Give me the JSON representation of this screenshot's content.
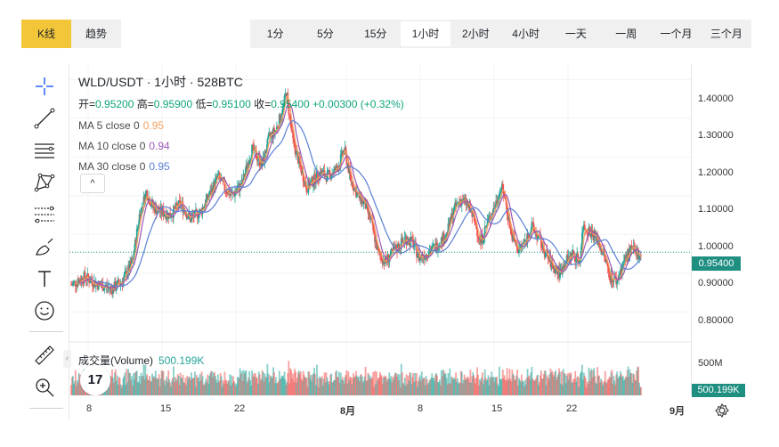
{
  "view_tabs": [
    {
      "label": "K线",
      "active": true
    },
    {
      "label": "趋势",
      "active": false
    }
  ],
  "intervals": [
    {
      "label": "1分",
      "active": false
    },
    {
      "label": "5分",
      "active": false
    },
    {
      "label": "15分",
      "active": false
    },
    {
      "label": "1小时",
      "active": true
    },
    {
      "label": "2小时",
      "active": false
    },
    {
      "label": "4小时",
      "active": false
    },
    {
      "label": "一天",
      "active": false
    },
    {
      "label": "一周",
      "active": false
    },
    {
      "label": "一个月",
      "active": false
    },
    {
      "label": "三个月",
      "active": false
    }
  ],
  "tools": [
    "crosshair-icon",
    "trend-line-icon",
    "horizontal-lines-icon",
    "pattern-icon",
    "fib-retracement-icon",
    "brush-icon",
    "text-icon",
    "emoji-icon",
    "ruler-icon",
    "zoom-in-icon"
  ],
  "legend": {
    "title": "WLD/USDT · 1小时 · 528BTC",
    "open_label": "开=",
    "open": "0.95200",
    "high_label": "高=",
    "high": "0.95900",
    "low_label": "低=",
    "low": "0.95100",
    "close_label": "收=",
    "close": "0.95400",
    "change": "+0.00300 (+0.32%)",
    "ma": [
      {
        "label": "MA 5 close 0",
        "value": "0.95",
        "color": "#f4a261"
      },
      {
        "label": "MA 10 close 0",
        "value": "0.94",
        "color": "#9b59b6"
      },
      {
        "label": "MA 30 close 0",
        "value": "0.95",
        "color": "#5b7fd6"
      }
    ],
    "toggle": "^"
  },
  "volume_legend": {
    "label": "成交量(Volume)",
    "value": "500.199K"
  },
  "price_axis": [
    "1.40000",
    "1.30000",
    "1.20000",
    "1.10000",
    "1.00000",
    "0.90000",
    "0.80000"
  ],
  "volume_axis": [
    "500M"
  ],
  "last_price": "0.95400",
  "last_volume": "500.199K",
  "time_axis": [
    "8",
    "15",
    "22",
    "8月",
    "8",
    "15",
    "22",
    "9月"
  ],
  "colors": {
    "up": "#26a69a",
    "down": "#ef5350",
    "accent": "#f3c63a",
    "ma5": "#f4a261",
    "ma10": "#9b59b6",
    "ma30": "#5b7fd6"
  },
  "logo_text": "17",
  "chart_data": {
    "type": "candlestick",
    "title": "WLD/USDT · 1小时 · 528BTC",
    "ylim": [
      0.75,
      1.44
    ],
    "x_ticks": [
      "8",
      "15",
      "22",
      "8月",
      "8",
      "15",
      "22",
      "9月"
    ],
    "trend_close": [
      [
        0,
        0.87
      ],
      [
        4,
        0.89
      ],
      [
        8,
        0.87
      ],
      [
        12,
        0.86
      ],
      [
        15,
        0.88
      ],
      [
        18,
        0.93
      ],
      [
        20,
        1.05
      ],
      [
        22,
        1.11
      ],
      [
        24,
        1.07
      ],
      [
        26,
        1.06
      ],
      [
        29,
        1.05
      ],
      [
        32,
        1.08
      ],
      [
        35,
        1.04
      ],
      [
        38,
        1.06
      ],
      [
        41,
        1.11
      ],
      [
        43,
        1.15
      ],
      [
        45,
        1.12
      ],
      [
        47,
        1.1
      ],
      [
        50,
        1.13
      ],
      [
        53,
        1.22
      ],
      [
        56,
        1.18
      ],
      [
        58,
        1.25
      ],
      [
        60,
        1.27
      ],
      [
        62,
        1.32
      ],
      [
        63,
        1.37
      ],
      [
        65,
        1.24
      ],
      [
        67,
        1.18
      ],
      [
        69,
        1.12
      ],
      [
        71,
        1.14
      ],
      [
        73,
        1.16
      ],
      [
        75,
        1.15
      ],
      [
        78,
        1.17
      ],
      [
        80,
        1.22
      ],
      [
        82,
        1.14
      ],
      [
        84,
        1.1
      ],
      [
        86,
        1.08
      ],
      [
        88,
        1.03
      ],
      [
        90,
        0.95
      ],
      [
        92,
        0.93
      ],
      [
        94,
        0.95
      ],
      [
        96,
        0.97
      ],
      [
        98,
        0.99
      ],
      [
        100,
        0.98
      ],
      [
        102,
        0.94
      ],
      [
        104,
        0.95
      ],
      [
        107,
        0.97
      ],
      [
        110,
        1.0
      ],
      [
        112,
        1.06
      ],
      [
        114,
        1.09
      ],
      [
        116,
        1.08
      ],
      [
        118,
        1.04
      ],
      [
        120,
        0.98
      ],
      [
        122,
        1.03
      ],
      [
        124,
        1.07
      ],
      [
        126,
        1.12
      ],
      [
        127,
        1.1
      ],
      [
        129,
        1.0
      ],
      [
        131,
        0.96
      ],
      [
        133,
        0.98
      ],
      [
        135,
        1.02
      ],
      [
        137,
        0.99
      ],
      [
        139,
        0.95
      ],
      [
        141,
        0.92
      ],
      [
        143,
        0.9
      ],
      [
        145,
        0.93
      ],
      [
        147,
        0.95
      ],
      [
        149,
        0.93
      ],
      [
        150,
        1.02
      ],
      [
        152,
        1.01
      ],
      [
        154,
        0.99
      ],
      [
        156,
        0.95
      ],
      [
        158,
        0.89
      ],
      [
        160,
        0.88
      ],
      [
        162,
        0.93
      ],
      [
        164,
        0.96
      ],
      [
        166,
        0.95
      ],
      [
        167,
        0.954
      ]
    ]
  }
}
